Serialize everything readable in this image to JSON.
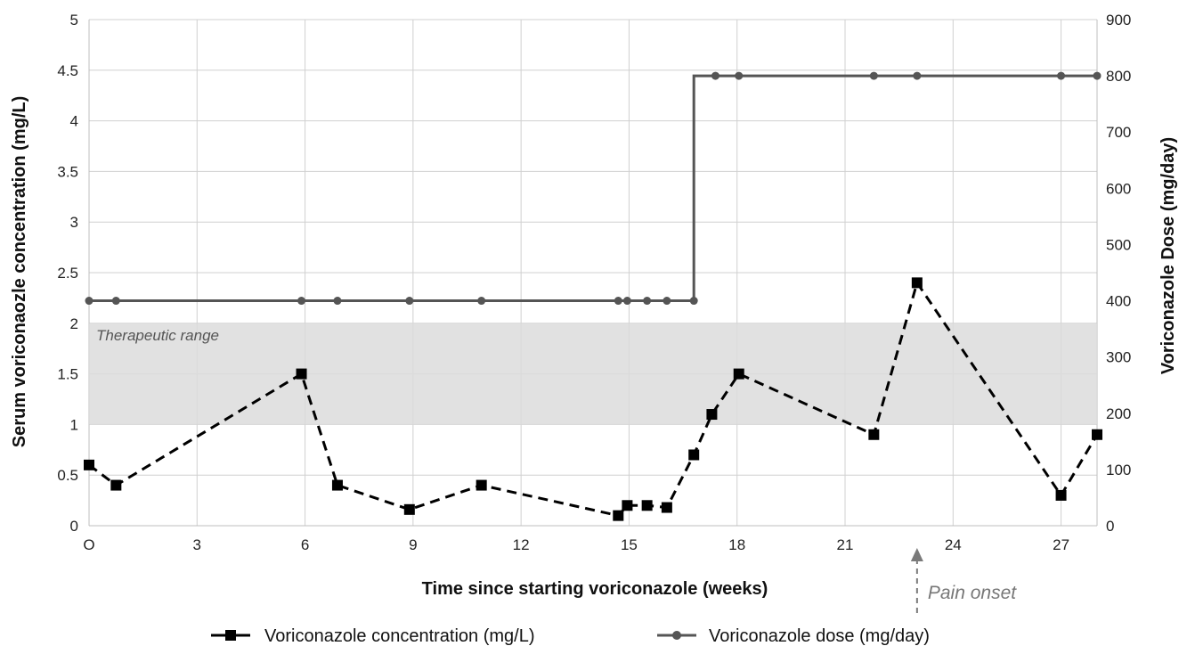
{
  "chart_data": {
    "type": "line",
    "xlabel": "Time since starting voriconazole (weeks)",
    "ylabel": "Serum voriconaozle concentration (mg/L)",
    "y2label": "Voriconazole Dose (mg/day)",
    "xlim": [
      0,
      28
    ],
    "ylim": [
      0,
      5
    ],
    "y2lim": [
      0,
      900
    ],
    "x_ticks": [
      0,
      3,
      6,
      9,
      12,
      15,
      18,
      21,
      24,
      27
    ],
    "x_tick_labels": [
      "O",
      "3",
      "6",
      "9",
      "12",
      "15",
      "18",
      "21",
      "24",
      "27"
    ],
    "y_ticks": [
      0,
      0.5,
      1,
      1.5,
      2,
      2.5,
      3,
      3.5,
      4,
      4.5,
      5
    ],
    "y_tick_labels": [
      "0",
      "0.5",
      "1",
      "1.5",
      "2",
      "2.5",
      "3",
      "3.5",
      "4",
      "4.5",
      "5"
    ],
    "y2_ticks": [
      0,
      100,
      200,
      300,
      400,
      500,
      600,
      700,
      800,
      900
    ],
    "y2_tick_labels": [
      "0",
      "100",
      "200",
      "300",
      "400",
      "500",
      "600",
      "700",
      "800",
      "900"
    ],
    "grid": true,
    "legend_position": "bottom",
    "band": {
      "y_from": 1,
      "y_to": 2,
      "label": "Therapeutic range",
      "color": "#dcdcdc"
    },
    "annotation": {
      "x": 23,
      "text": "Pain onset",
      "color": "#7a7a7a"
    },
    "series": [
      {
        "name": "Voriconazole concentration (mg/L)",
        "axis": "left",
        "style": "dashed",
        "marker": "square",
        "color": "#000000",
        "x": [
          0,
          0.75,
          5.9,
          6.9,
          8.9,
          10.9,
          14.7,
          14.95,
          15.5,
          16.05,
          16.8,
          17.3,
          18.05,
          21.8,
          23,
          27,
          28
        ],
        "y": [
          0.6,
          0.4,
          1.5,
          0.4,
          0.16,
          0.4,
          0.1,
          0.2,
          0.2,
          0.18,
          0.7,
          1.1,
          1.5,
          0.9,
          2.4,
          0.3,
          0.9
        ]
      },
      {
        "name": "Voriconazole dose (mg/day)",
        "axis": "right",
        "style": "step",
        "marker": "circle",
        "color": "#555555",
        "x": [
          0,
          0.75,
          5.9,
          6.9,
          8.9,
          10.9,
          14.7,
          14.95,
          15.5,
          16.05,
          16.8,
          17.4,
          18.05,
          21.8,
          23,
          27,
          28
        ],
        "y": [
          400,
          400,
          400,
          400,
          400,
          400,
          400,
          400,
          400,
          400,
          400,
          800,
          800,
          800,
          800,
          800,
          800
        ]
      }
    ]
  }
}
